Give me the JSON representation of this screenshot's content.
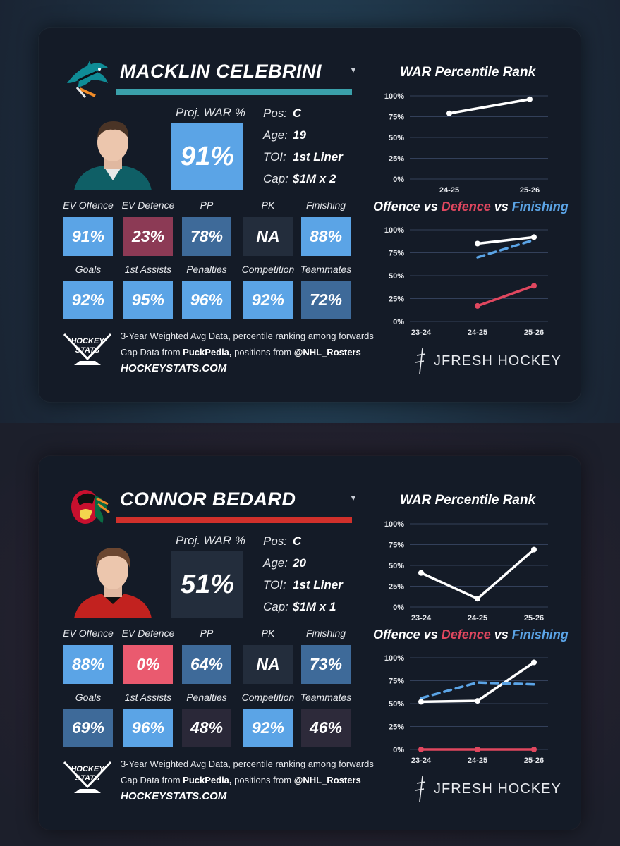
{
  "cards": [
    {
      "player_name": "MACKLIN CELEBRINI",
      "team_color": "#3aa0aa",
      "proj_war_label": "Proj. WAR %",
      "proj_war_value": "91%",
      "proj_war_color": "#5ba4e6",
      "info": [
        {
          "key": "Pos:",
          "value": "C"
        },
        {
          "key": "Age:",
          "value": "19"
        },
        {
          "key": "TOI:",
          "value": "1st Liner"
        },
        {
          "key": "Cap:",
          "value": "$1M x 2"
        }
      ],
      "stats_row1": [
        {
          "label": "EV Offence",
          "value": "91%",
          "color": "#5ba4e6"
        },
        {
          "label": "EV Defence",
          "value": "23%",
          "color": "#8c3a55"
        },
        {
          "label": "PP",
          "value": "78%",
          "color": "#3e6a99"
        },
        {
          "label": "PK",
          "value": "NA",
          "color": "#232d3c"
        },
        {
          "label": "Finishing",
          "value": "88%",
          "color": "#5ba4e6"
        }
      ],
      "stats_row2": [
        {
          "label": "Goals",
          "value": "92%",
          "color": "#5ba4e6"
        },
        {
          "label": "1st Assists",
          "value": "95%",
          "color": "#5ba4e6"
        },
        {
          "label": "Penalties",
          "value": "96%",
          "color": "#5ba4e6"
        },
        {
          "label": "Competition",
          "value": "92%",
          "color": "#5ba4e6"
        },
        {
          "label": "Teammates",
          "value": "72%",
          "color": "#3e6a99"
        }
      ],
      "footer_line1": "3-Year Weighted Avg Data, percentile ranking among forwards",
      "footer_line2_a": "Cap Data from ",
      "footer_line2_b": "PuckPedia,",
      "footer_line2_c": " positions from ",
      "footer_line2_d": "@NHL_Rosters",
      "site": "HOCKEYSTATS.COM",
      "brand": "JFRESH HOCKEY",
      "hockey_stats_logo_text": [
        "HOCKEY",
        "STATS"
      ],
      "chart_data": [
        {
          "type": "line",
          "title": "WAR Percentile Rank",
          "categories": [
            "24-25",
            "25-26"
          ],
          "ylim": [
            0,
            100
          ],
          "yticks": [
            "0%",
            "25%",
            "50%",
            "75%",
            "100%"
          ],
          "series": [
            {
              "name": "WAR",
              "values": [
                79,
                96
              ],
              "color": "#ffffff",
              "dashed": false
            }
          ]
        },
        {
          "type": "line",
          "title_parts": [
            {
              "text": "Offence",
              "color": "#ffffff"
            },
            {
              "text": " vs ",
              "color": "#ffffff"
            },
            {
              "text": "Defence",
              "color": "#e0475f"
            },
            {
              "text": " vs ",
              "color": "#ffffff"
            },
            {
              "text": "Finishing",
              "color": "#5ba4e6"
            }
          ],
          "categories": [
            "23-24",
            "24-25",
            "25-26"
          ],
          "ylim": [
            0,
            100
          ],
          "yticks": [
            "0%",
            "25%",
            "50%",
            "75%",
            "100%"
          ],
          "series": [
            {
              "name": "Offence",
              "values": [
                null,
                85,
                92
              ],
              "color": "#ffffff",
              "dashed": false
            },
            {
              "name": "Defence",
              "values": [
                null,
                17,
                39
              ],
              "color": "#e0475f",
              "dashed": false
            },
            {
              "name": "Finishing",
              "values": [
                null,
                70,
                89
              ],
              "color": "#5ba4e6",
              "dashed": true
            }
          ]
        }
      ]
    },
    {
      "player_name": "CONNOR BEDARD",
      "team_color": "#d0302b",
      "proj_war_label": "Proj. WAR %",
      "proj_war_value": "51%",
      "proj_war_color": "#232d3c",
      "info": [
        {
          "key": "Pos:",
          "value": "C"
        },
        {
          "key": "Age:",
          "value": "20"
        },
        {
          "key": "TOI:",
          "value": "1st Liner"
        },
        {
          "key": "Cap:",
          "value": "$1M x 1"
        }
      ],
      "stats_row1": [
        {
          "label": "EV Offence",
          "value": "88%",
          "color": "#5ba4e6"
        },
        {
          "label": "EV Defence",
          "value": "0%",
          "color": "#ea5a6f"
        },
        {
          "label": "PP",
          "value": "64%",
          "color": "#3e6a99"
        },
        {
          "label": "PK",
          "value": "NA",
          "color": "#232d3c"
        },
        {
          "label": "Finishing",
          "value": "73%",
          "color": "#3e6a99"
        }
      ],
      "stats_row2": [
        {
          "label": "Goals",
          "value": "69%",
          "color": "#3e6a99"
        },
        {
          "label": "1st Assists",
          "value": "96%",
          "color": "#5ba4e6"
        },
        {
          "label": "Penalties",
          "value": "48%",
          "color": "#2a2838"
        },
        {
          "label": "Competition",
          "value": "92%",
          "color": "#5ba4e6"
        },
        {
          "label": "Teammates",
          "value": "46%",
          "color": "#2d2a3a"
        }
      ],
      "footer_line1": "3-Year Weighted Avg Data, percentile ranking among forwards",
      "footer_line2_a": "Cap Data from ",
      "footer_line2_b": "PuckPedia,",
      "footer_line2_c": " positions from ",
      "footer_line2_d": "@NHL_Rosters",
      "site": "HOCKEYSTATS.COM",
      "brand": "JFRESH HOCKEY",
      "hockey_stats_logo_text": [
        "HOCKEY",
        "STATS"
      ],
      "chart_data": [
        {
          "type": "line",
          "title": "WAR Percentile Rank",
          "categories": [
            "23-24",
            "24-25",
            "25-26"
          ],
          "ylim": [
            0,
            100
          ],
          "yticks": [
            "0%",
            "25%",
            "50%",
            "75%",
            "100%"
          ],
          "series": [
            {
              "name": "WAR",
              "values": [
                41,
                10,
                69
              ],
              "color": "#ffffff",
              "dashed": false
            }
          ]
        },
        {
          "type": "line",
          "title_parts": [
            {
              "text": "Offence",
              "color": "#ffffff"
            },
            {
              "text": " vs ",
              "color": "#ffffff"
            },
            {
              "text": "Defence",
              "color": "#e0475f"
            },
            {
              "text": " vs ",
              "color": "#ffffff"
            },
            {
              "text": "Finishing",
              "color": "#5ba4e6"
            }
          ],
          "categories": [
            "23-24",
            "24-25",
            "25-26"
          ],
          "ylim": [
            0,
            100
          ],
          "yticks": [
            "0%",
            "25%",
            "50%",
            "75%",
            "100%"
          ],
          "series": [
            {
              "name": "Offence",
              "values": [
                52,
                53,
                95
              ],
              "color": "#ffffff",
              "dashed": false
            },
            {
              "name": "Defence",
              "values": [
                0,
                0,
                0
              ],
              "color": "#e0475f",
              "dashed": false
            },
            {
              "name": "Finishing",
              "values": [
                56,
                73,
                71
              ],
              "color": "#5ba4e6",
              "dashed": true
            }
          ]
        }
      ]
    }
  ]
}
